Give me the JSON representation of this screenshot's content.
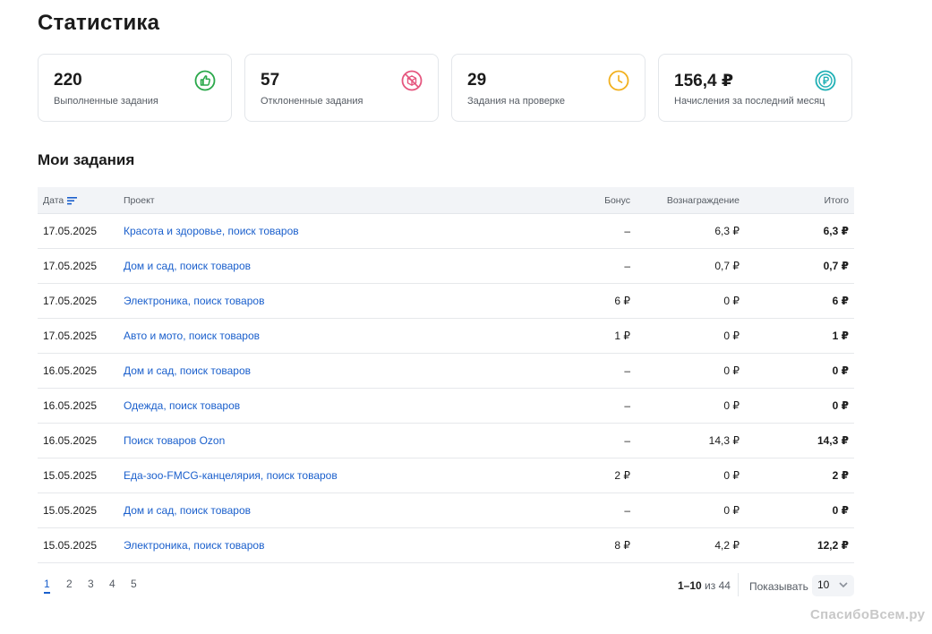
{
  "title": "Статистика",
  "cards": [
    {
      "value": "220",
      "label": "Выполненные задания",
      "icon": "thumbs-up-icon",
      "color": "#2aa84a"
    },
    {
      "value": "57",
      "label": "Отклоненные задания",
      "icon": "rejected-box-icon",
      "color": "#e5567e"
    },
    {
      "value": "29",
      "label": "Задания на проверке",
      "icon": "clock-icon",
      "color": "#f2b01e"
    },
    {
      "value": "156,4 ₽",
      "label": "Начисления за последний месяц",
      "icon": "ruble-coin-icon",
      "color": "#1fb0b5"
    }
  ],
  "tasks_title": "Мои задания",
  "table": {
    "headers": [
      "Дата",
      "Проект",
      "Бонус",
      "Вознаграждение",
      "Итого"
    ],
    "rows": [
      [
        "17.05.2025",
        "Красота и здоровье, поиск товаров",
        "–",
        "6,3 ₽",
        "6,3 ₽"
      ],
      [
        "17.05.2025",
        "Дом и сад, поиск товаров",
        "–",
        "0,7 ₽",
        "0,7 ₽"
      ],
      [
        "17.05.2025",
        "Электроника, поиск товаров",
        "6 ₽",
        "0 ₽",
        "6 ₽"
      ],
      [
        "17.05.2025",
        "Авто и мото, поиск товаров",
        "1 ₽",
        "0 ₽",
        "1 ₽"
      ],
      [
        "16.05.2025",
        "Дом и сад, поиск товаров",
        "–",
        "0 ₽",
        "0 ₽"
      ],
      [
        "16.05.2025",
        "Одежда, поиск товаров",
        "–",
        "0 ₽",
        "0 ₽"
      ],
      [
        "16.05.2025",
        "Поиск товаров Ozon",
        "–",
        "14,3 ₽",
        "14,3 ₽"
      ],
      [
        "15.05.2025",
        "Еда-зоо-FMCG-канцелярия, поиск товаров",
        "2 ₽",
        "0 ₽",
        "2 ₽"
      ],
      [
        "15.05.2025",
        "Дом и сад, поиск товаров",
        "–",
        "0 ₽",
        "0 ₽"
      ],
      [
        "15.05.2025",
        "Электроника, поиск товаров",
        "8 ₽",
        "4,2 ₽",
        "12,2 ₽"
      ]
    ]
  },
  "pagination": {
    "pages": [
      "1",
      "2",
      "3",
      "4",
      "5"
    ],
    "current": "1",
    "range": "1–10",
    "of": "из 44",
    "show_label": "Показывать",
    "page_size": "10"
  },
  "watermark": "СпасибоВсем.ру",
  "accent_color": "#1a5fcc"
}
